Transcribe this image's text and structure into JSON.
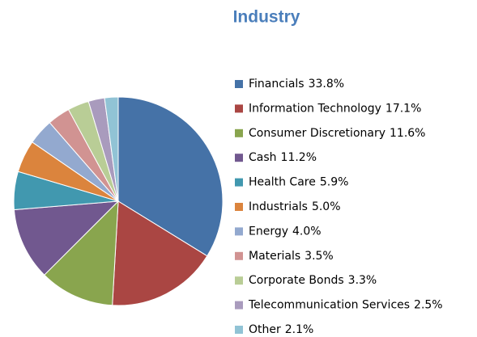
{
  "chart_data": {
    "type": "pie",
    "title": "Industry",
    "categories": [
      "Financials",
      "Information Technology",
      "Consumer Discretionary",
      "Cash",
      "Health Care",
      "Industrials",
      "Energy",
      "Materials",
      "Corporate Bonds",
      "Telecommunication Services",
      "Other"
    ],
    "values": [
      33.8,
      17.1,
      11.6,
      11.2,
      5.9,
      5.0,
      4.0,
      3.5,
      3.3,
      2.5,
      2.1
    ],
    "value_labels": [
      "33.8%",
      "17.1%",
      "11.6%",
      "11.2%",
      "5.9%",
      "5.0%",
      "4.0%",
      "3.5%",
      "3.3%",
      "2.5%",
      "2.1%"
    ],
    "colors": [
      "#4572a7",
      "#aa4643",
      "#89a54e",
      "#71588f",
      "#4198af",
      "#db843d",
      "#93a9cf",
      "#d19392",
      "#b9cd96",
      "#a99bbd",
      "#91c3d5"
    ],
    "legend": "right"
  }
}
